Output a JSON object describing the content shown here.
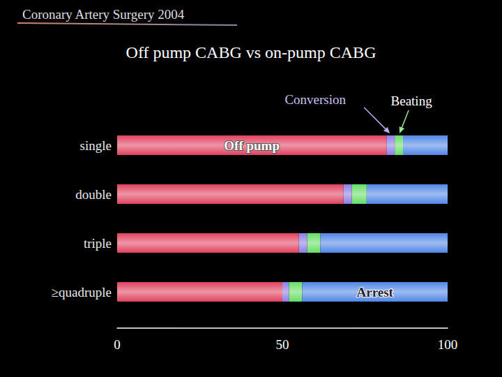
{
  "chart_data": {
    "type": "bar",
    "subtitle": "Coronary Artery Surgery 2004",
    "title": "Off pump CABG vs on-pump CABG",
    "categories": [
      "single",
      "double",
      "triple",
      "≥quadruple"
    ],
    "orientation": "horizontal",
    "stacked": true,
    "grid": false,
    "xlim": [
      0,
      100
    ],
    "xticks": [
      0,
      50,
      100
    ],
    "series": [
      {
        "name": "Off pump",
        "color": "#e0405e",
        "values": [
          81.5,
          68.5,
          55,
          50
        ]
      },
      {
        "name": "Conversion",
        "color": "#8c7ce6",
        "values": [
          2.5,
          2.5,
          2.5,
          2
        ]
      },
      {
        "name": "Beating",
        "color": "#66dd66",
        "values": [
          2.5,
          4.5,
          4,
          4
        ]
      },
      {
        "name": "Arrest",
        "color": "#4f86e6",
        "values": [
          13.5,
          24.5,
          38.5,
          44
        ]
      }
    ]
  }
}
